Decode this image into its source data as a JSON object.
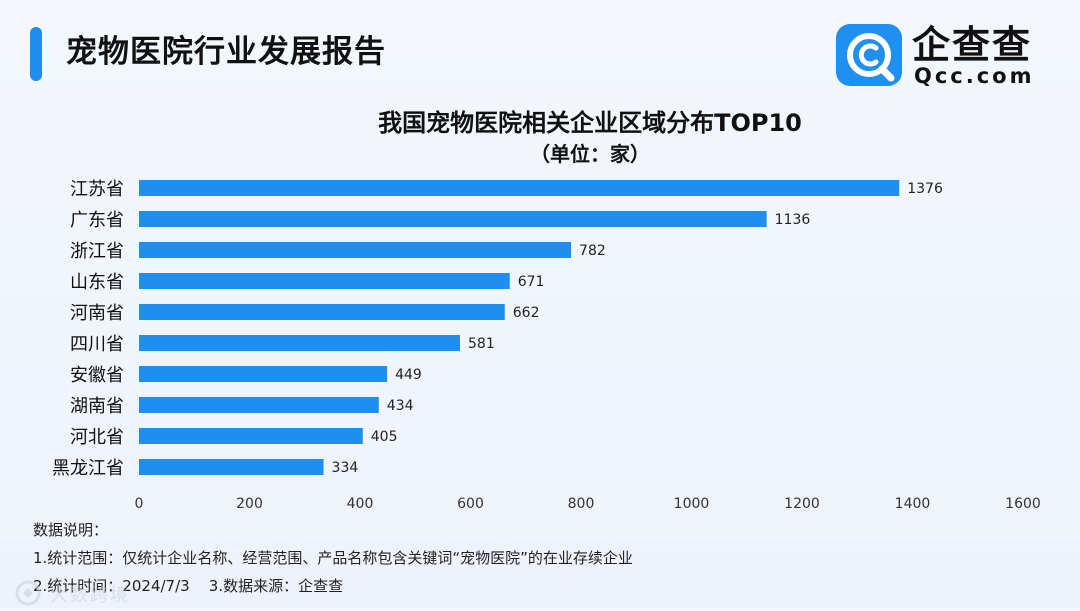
{
  "header": {
    "title": "宠物医院行业发展报告"
  },
  "logo": {
    "name": "企查查",
    "domain": "Qcc.com"
  },
  "colors": {
    "accent": "#1e8ff0",
    "bar": "#1e8ff0",
    "logo_bg": "#1f8ff0"
  },
  "chart_data": {
    "type": "bar",
    "orientation": "horizontal",
    "title": "我国宠物医院相关企业区域分布TOP10",
    "subtitle": "（单位：家）",
    "categories": [
      "江苏省",
      "广东省",
      "浙江省",
      "山东省",
      "河南省",
      "四川省",
      "安徽省",
      "湖南省",
      "河北省",
      "黑龙江省"
    ],
    "values": [
      1376,
      1136,
      782,
      671,
      662,
      581,
      449,
      434,
      405,
      334
    ],
    "xlim": [
      0,
      1600
    ],
    "xticks": [
      0,
      200,
      400,
      600,
      800,
      1000,
      1200,
      1400,
      1600
    ],
    "grid": false,
    "legend": "none",
    "data_labels": true
  },
  "notes": {
    "heading": "数据说明：",
    "line1": "1.统计范围：仅统计企业名称、经营范围、产品名称包含关键词“宠物医院”的在业存续企业",
    "line2": "2.统计时间：2024/7/3    3.数据来源：企查查"
  },
  "watermark": {
    "text": "大数跨境"
  }
}
